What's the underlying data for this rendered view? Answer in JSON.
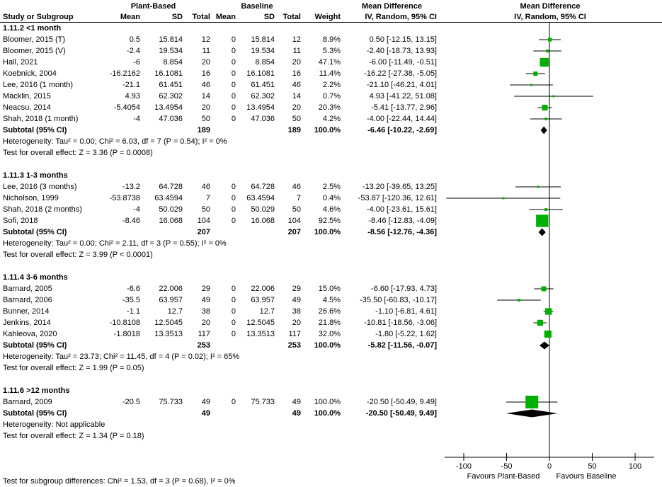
{
  "header": {
    "group_plant": "Plant-Based",
    "group_baseline": "Baseline",
    "group_md_text": "Mean Difference",
    "group_md_plot": "Mean Difference",
    "study_col": "Study or Subgroup",
    "cols": [
      "Mean",
      "SD",
      "Total",
      "Mean",
      "SD",
      "Total",
      "Weight",
      "IV, Random, 95% CI"
    ],
    "plot_sub": "IV, Random, 95% CI"
  },
  "footer": "Test for subgroup differences: Chi² = 1.53, df = 3 (P = 0.68), I² = 0%",
  "colors": {
    "marker": "#00b000",
    "diamond": "#000000",
    "text": "#000000"
  },
  "chart_data": {
    "type": "scatter",
    "variant": "forest-plot",
    "effect_measure": "Mean Difference",
    "method": "IV, Random, 95% CI",
    "xlim": [
      -125,
      125
    ],
    "x_ticks": [
      -100,
      -50,
      0,
      50,
      100
    ],
    "x_axis_labels": {
      "left": "Favours Plant-Based",
      "right": "Favours Baseline"
    },
    "groups": [
      {
        "name": "1.11.2 <1 month",
        "studies": [
          {
            "name": "Bloomer, 2015 (T)",
            "cells": [
              "0.5",
              "15.814",
              "12",
              "0",
              "15.814",
              "12",
              "8.9%",
              "0.50 [-12.15, 13.15]"
            ],
            "md": 0.5,
            "lo": -12.15,
            "hi": 13.15,
            "weight": 8.9
          },
          {
            "name": "Bloomer, 2015 (V)",
            "cells": [
              "-2.4",
              "19.534",
              "11",
              "0",
              "19.534",
              "11",
              "5.3%",
              "-2.40 [-18.73, 13.93]"
            ],
            "md": -2.4,
            "lo": -18.73,
            "hi": 13.93,
            "weight": 5.3
          },
          {
            "name": "Hall, 2021",
            "cells": [
              "-6",
              "8.854",
              "20",
              "0",
              "8.854",
              "20",
              "47.1%",
              "-6.00 [-11.49, -0.51]"
            ],
            "md": -6,
            "lo": -11.49,
            "hi": -0.51,
            "weight": 47.1
          },
          {
            "name": "Koebnick, 2004",
            "cells": [
              "-16.2162",
              "16.1081",
              "16",
              "0",
              "16.1081",
              "16",
              "11.4%",
              "-16.22 [-27.38, -5.05]"
            ],
            "md": -16.22,
            "lo": -27.38,
            "hi": -5.05,
            "weight": 11.4
          },
          {
            "name": "Lee, 2016 (1 month)",
            "cells": [
              "-21.1",
              "61.451",
              "46",
              "0",
              "61.451",
              "46",
              "2.2%",
              "-21.10 [-46.21, 4.01]"
            ],
            "md": -21.1,
            "lo": -46.21,
            "hi": 4.01,
            "weight": 2.2
          },
          {
            "name": "Macklin, 2015",
            "cells": [
              "4.93",
              "62.302",
              "14",
              "0",
              "62.302",
              "14",
              "0.7%",
              "4.93 [-41.22, 51.08]"
            ],
            "md": 4.93,
            "lo": -41.22,
            "hi": 51.08,
            "weight": 0.7
          },
          {
            "name": "Neacsu, 2014",
            "cells": [
              "-5.4054",
              "13.4954",
              "20",
              "0",
              "13.4954",
              "20",
              "20.3%",
              "-5.41 [-13.77, 2.96]"
            ],
            "md": -5.41,
            "lo": -13.77,
            "hi": 2.96,
            "weight": 20.3
          },
          {
            "name": "Shah, 2018 (1 month)",
            "cells": [
              "-4",
              "47.036",
              "50",
              "0",
              "47.036",
              "50",
              "4.2%",
              "-4.00 [-22.44, 14.44]"
            ],
            "md": -4,
            "lo": -22.44,
            "hi": 14.44,
            "weight": 4.2
          }
        ],
        "subtotal": {
          "label": "Subtotal (95% CI)",
          "n1": "189",
          "n2": "189",
          "weight": "100.0%",
          "ci_text": "-6.46 [-10.22, -2.69]",
          "md": -6.46,
          "lo": -10.22,
          "hi": -2.69
        },
        "heterogeneity": "Heterogeneity: Tau² = 0.00; Chi² = 6.03, df = 7 (P = 0.54); I² = 0%",
        "overall_effect": "Test for overall effect: Z = 3.36 (P = 0.0008)"
      },
      {
        "name": "1.11.3 1-3 months",
        "studies": [
          {
            "name": "Lee, 2016 (3 months)",
            "cells": [
              "-13.2",
              "64.728",
              "46",
              "0",
              "64.728",
              "46",
              "2.5%",
              "-13.20 [-39.65, 13.25]"
            ],
            "md": -13.2,
            "lo": -39.65,
            "hi": 13.25,
            "weight": 2.5
          },
          {
            "name": "Nicholson, 1999",
            "cells": [
              "-53.8738",
              "63.4594",
              "7",
              "0",
              "63.4594",
              "7",
              "0.4%",
              "-53.87 [-120.36, 12.61]"
            ],
            "md": -53.87,
            "lo": -120.36,
            "hi": 12.61,
            "weight": 0.4
          },
          {
            "name": "Shah, 2018 (2 months)",
            "cells": [
              "-4",
              "50.029",
              "50",
              "0",
              "50.029",
              "50",
              "4.6%",
              "-4.00 [-23.61, 15.61]"
            ],
            "md": -4,
            "lo": -23.61,
            "hi": 15.61,
            "weight": 4.6
          },
          {
            "name": "Sofi, 2018",
            "cells": [
              "-8.46",
              "16.068",
              "104",
              "0",
              "16.068",
              "104",
              "92.5%",
              "-8.46 [-12.83, -4.09]"
            ],
            "md": -8.46,
            "lo": -12.83,
            "hi": -4.09,
            "weight": 92.5
          }
        ],
        "subtotal": {
          "label": "Subtotal (95% CI)",
          "n1": "207",
          "n2": "207",
          "weight": "100.0%",
          "ci_text": "-8.56 [-12.76, -4.36]",
          "md": -8.56,
          "lo": -12.76,
          "hi": -4.36
        },
        "heterogeneity": "Heterogeneity: Tau² = 0.00; Chi² = 2.11, df = 3 (P = 0.55); I² = 0%",
        "overall_effect": "Test for overall effect: Z = 3.99 (P < 0.0001)"
      },
      {
        "name": "1.11.4 3-6 months",
        "studies": [
          {
            "name": "Barnard, 2005",
            "cells": [
              "-6.6",
              "22.006",
              "29",
              "0",
              "22.006",
              "29",
              "15.0%",
              "-6.60 [-17.93, 4.73]"
            ],
            "md": -6.6,
            "lo": -17.93,
            "hi": 4.73,
            "weight": 15.0
          },
          {
            "name": "Barnard, 2006",
            "cells": [
              "-35.5",
              "63.957",
              "49",
              "0",
              "63.957",
              "49",
              "4.5%",
              "-35.50 [-60.83, -10.17]"
            ],
            "md": -35.5,
            "lo": -60.83,
            "hi": -10.17,
            "weight": 4.5
          },
          {
            "name": "Bunner, 2014",
            "cells": [
              "-1.1",
              "12.7",
              "38",
              "0",
              "12.7",
              "38",
              "26.6%",
              "-1.10 [-6.81, 4.61]"
            ],
            "md": -1.1,
            "lo": -6.81,
            "hi": 4.61,
            "weight": 26.6
          },
          {
            "name": "Jenkins, 2014",
            "cells": [
              "-10.8108",
              "12.5045",
              "20",
              "0",
              "12.5045",
              "20",
              "21.8%",
              "-10.81 [-18.56, -3.06]"
            ],
            "md": -10.81,
            "lo": -18.56,
            "hi": -3.06,
            "weight": 21.8
          },
          {
            "name": "Kahleova, 2020",
            "cells": [
              "-1.8018",
              "13.3513",
              "117",
              "0",
              "13.3513",
              "117",
              "32.0%",
              "-1.80 [-5.22, 1.62]"
            ],
            "md": -1.8,
            "lo": -5.22,
            "hi": 1.62,
            "weight": 32.0
          }
        ],
        "subtotal": {
          "label": "Subtotal (95% CI)",
          "n1": "253",
          "n2": "253",
          "weight": "100.0%",
          "ci_text": "-5.82 [-11.56, -0.07]",
          "md": -5.82,
          "lo": -11.56,
          "hi": -0.07
        },
        "heterogeneity": "Heterogeneity: Tau² = 23.73; Chi² = 11.45, df = 4 (P = 0.02); I² = 65%",
        "overall_effect": "Test for overall effect: Z = 1.99 (P = 0.05)"
      },
      {
        "name": "1.11.6 >12 months",
        "studies": [
          {
            "name": "Barnard, 2009",
            "cells": [
              "-20.5",
              "75.733",
              "49",
              "0",
              "75.733",
              "49",
              "100.0%",
              "-20.50 [-50.49, 9.49]"
            ],
            "md": -20.5,
            "lo": -50.49,
            "hi": 9.49,
            "weight": 100.0
          }
        ],
        "subtotal": {
          "label": "Subtotal (95% CI)",
          "n1": "49",
          "n2": "49",
          "weight": "100.0%",
          "ci_text": "-20.50 [-50.49, 9.49]",
          "md": -20.5,
          "lo": -50.49,
          "hi": 9.49
        },
        "heterogeneity": "Heterogeneity: Not applicable",
        "overall_effect": "Test for overall effect: Z = 1.34 (P = 0.18)"
      }
    ]
  }
}
